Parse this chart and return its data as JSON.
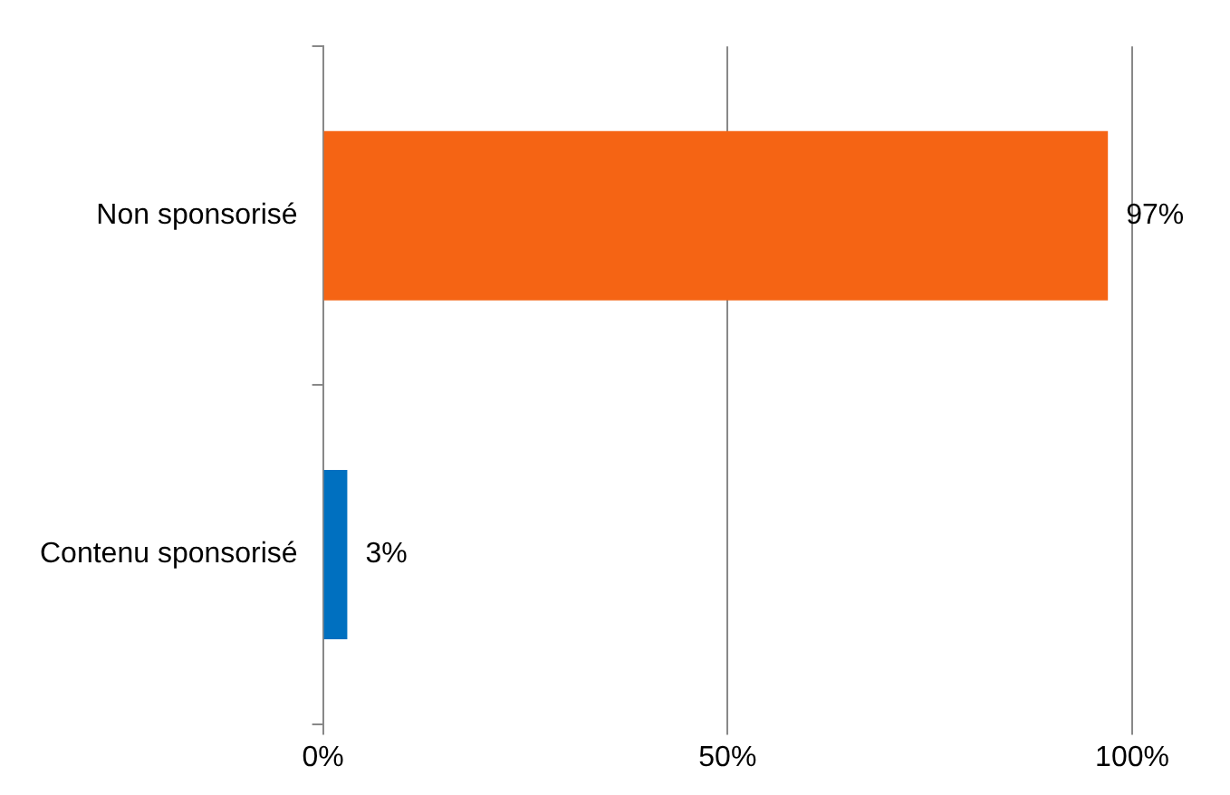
{
  "chart_data": {
    "type": "bar",
    "orientation": "horizontal",
    "categories": [
      "Non sponsorisé",
      "Contenu sponsorisé"
    ],
    "values": [
      97,
      3
    ],
    "colors": [
      "#f56414",
      "#0070c0"
    ],
    "value_labels": [
      "97%",
      "3%"
    ],
    "xlim": [
      0,
      100
    ],
    "xticks": [
      {
        "value": 0,
        "label": "0%"
      },
      {
        "value": 50,
        "label": "50%"
      },
      {
        "value": 100,
        "label": "100%"
      }
    ],
    "grid": "x",
    "legend": false
  }
}
